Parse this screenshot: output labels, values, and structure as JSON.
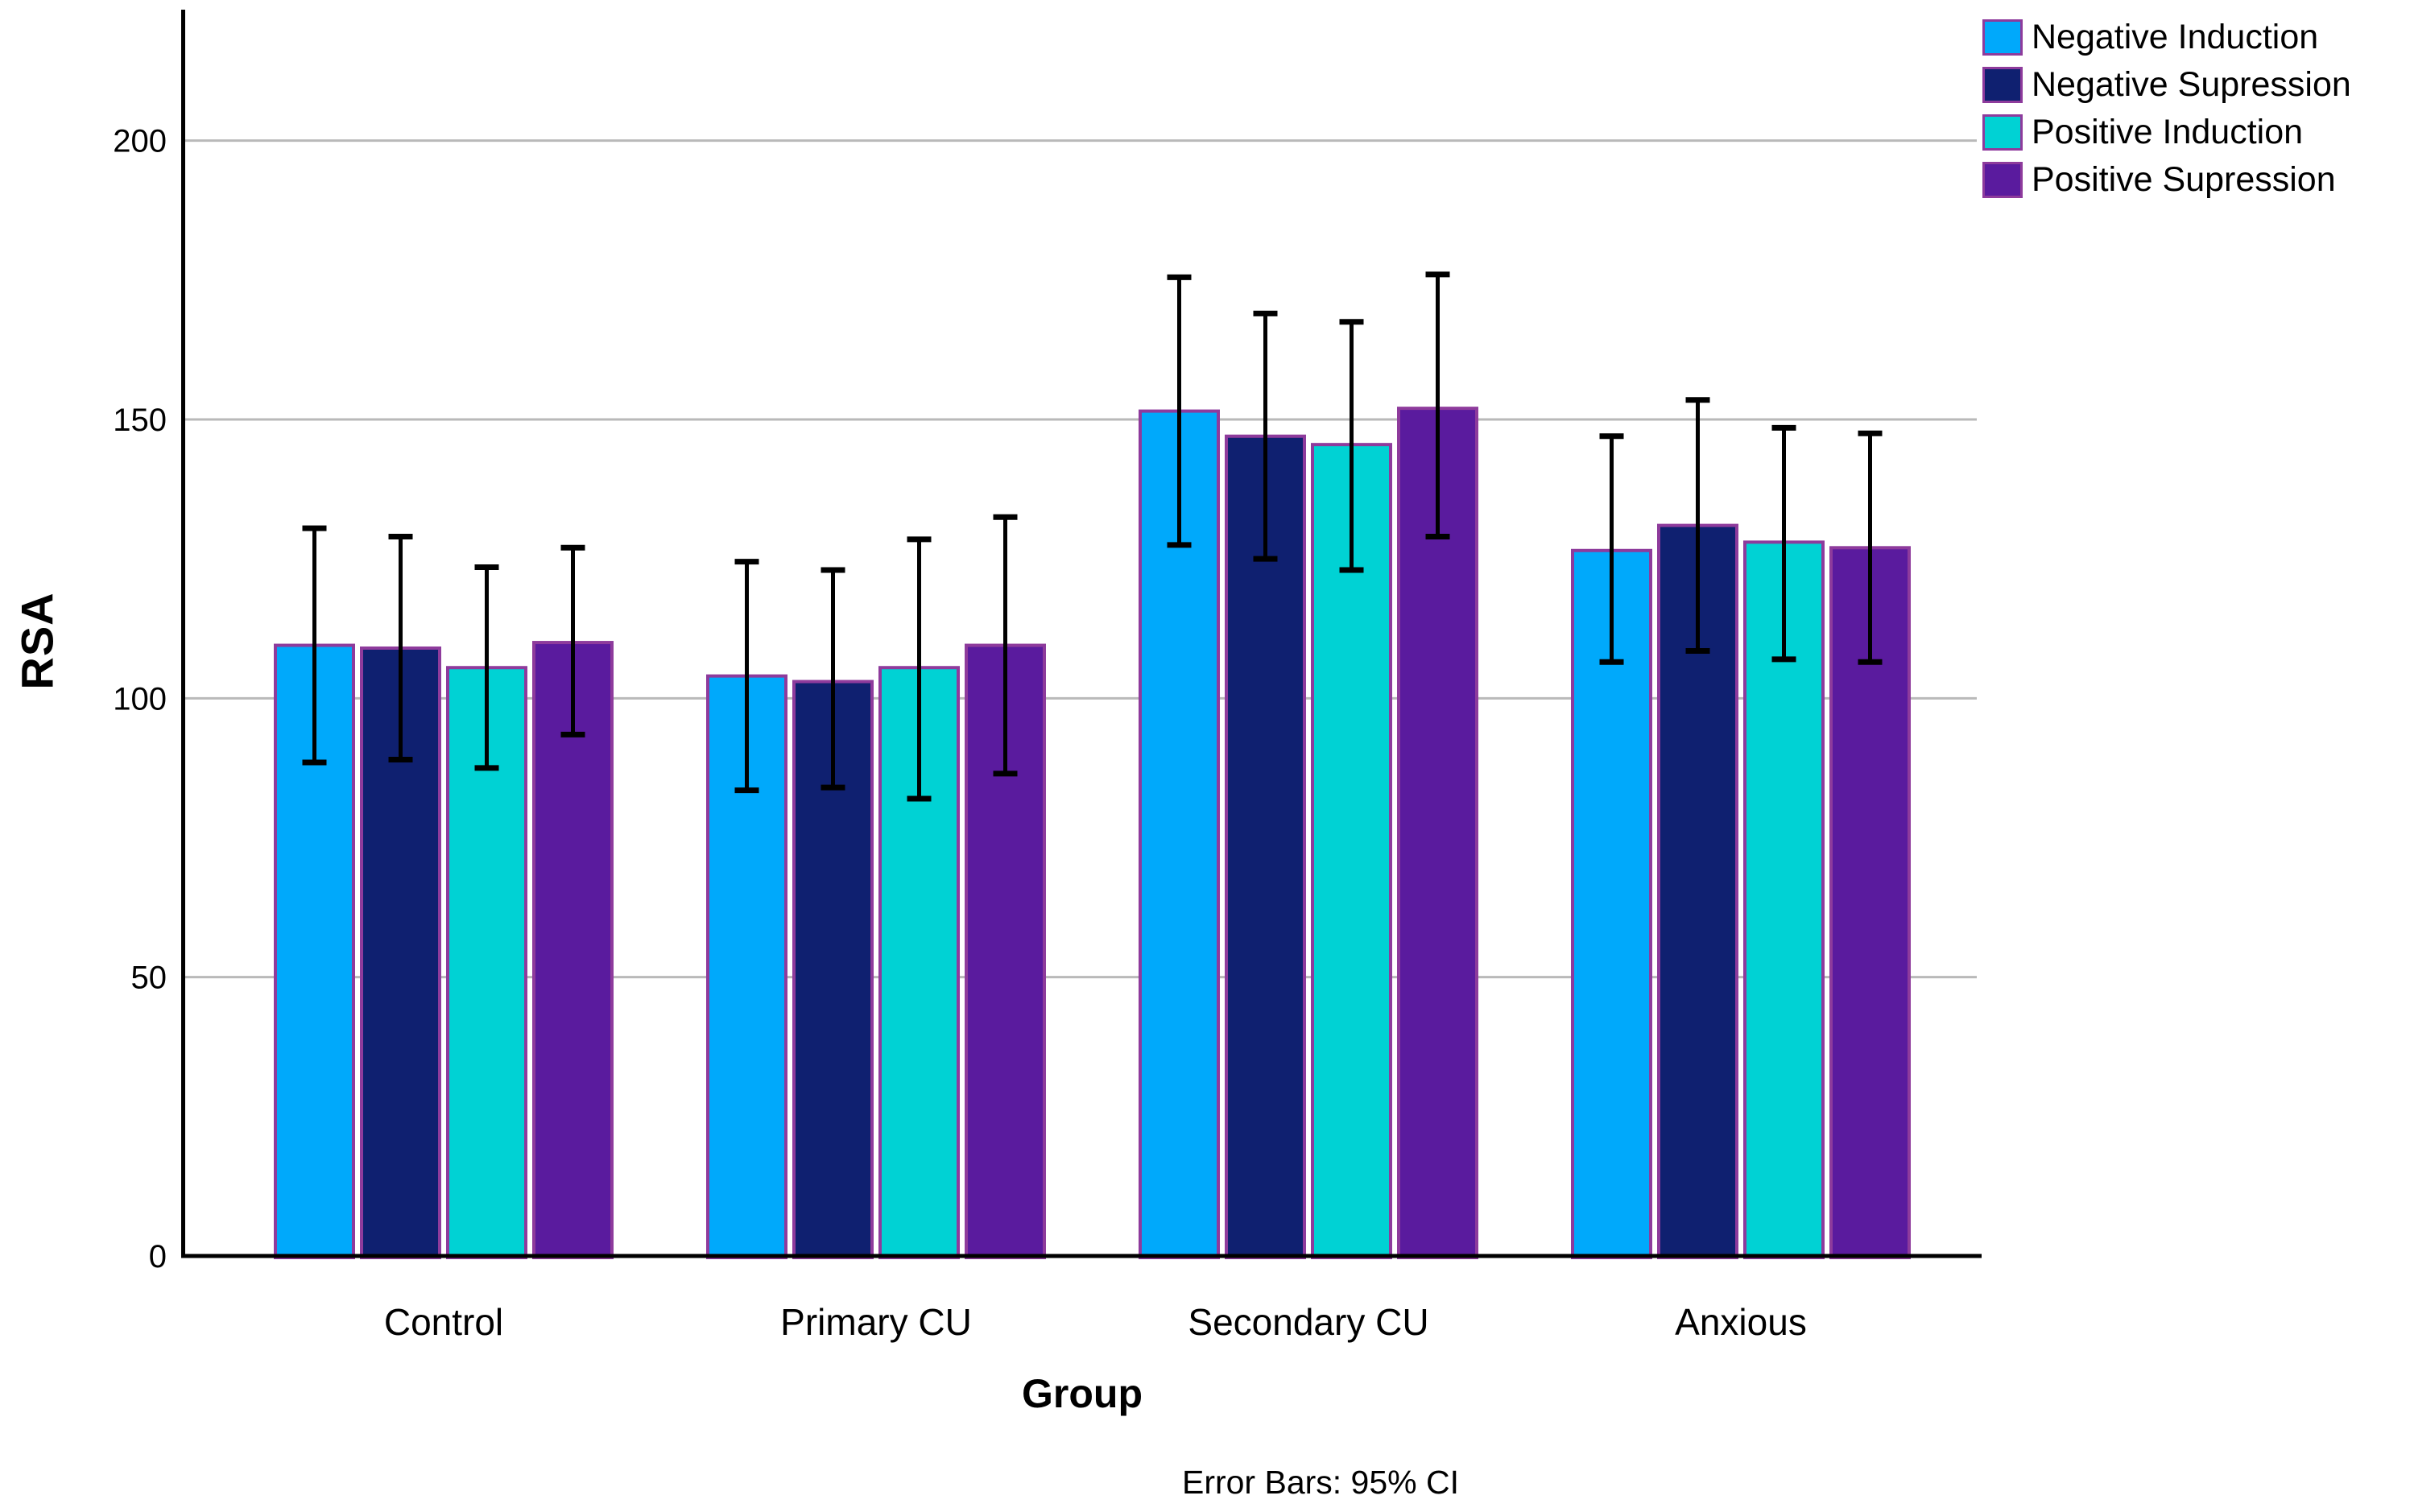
{
  "chart_data": {
    "type": "bar",
    "title": "",
    "xlabel": "Group",
    "ylabel": "RSA",
    "footer": "Error Bars: 95% CI",
    "categories": [
      "Control",
      "Primary CU",
      "Secondary CU",
      "Anxious"
    ],
    "yticks": [
      0,
      50,
      100,
      150,
      200
    ],
    "ylim": [
      0,
      224
    ],
    "grid": true,
    "legend_position": "top-right",
    "colors": {
      "grid_color": "#B9B9B9",
      "axis_color": "#000000",
      "bar_border_color": "#8E3B9C",
      "error_bar_color": "#000000",
      "text_color": "#000000",
      "background": "#FFFFFF"
    },
    "series": [
      {
        "name": "Negative Induction",
        "color": "#00A9FB",
        "values": [
          109.5,
          104,
          151.5,
          126.5
        ],
        "ci_low": [
          88.5,
          83.5,
          127.5,
          106.5
        ],
        "ci_high": [
          130.5,
          124.5,
          175.5,
          147
        ]
      },
      {
        "name": "Negative Supression",
        "color": "#0F2070",
        "values": [
          109,
          103,
          147,
          131
        ],
        "ci_low": [
          89,
          84,
          125,
          108.5
        ],
        "ci_high": [
          129,
          123,
          169,
          153.5
        ]
      },
      {
        "name": "Positive Induction",
        "color": "#00D2D4",
        "values": [
          105.5,
          105.5,
          145.5,
          128
        ],
        "ci_low": [
          87.5,
          82,
          123,
          107
        ],
        "ci_high": [
          123.5,
          128.5,
          167.5,
          148.5
        ]
      },
      {
        "name": "Positive Supression",
        "color": "#5A1B9E",
        "values": [
          110,
          109.5,
          152,
          127
        ],
        "ci_low": [
          93.5,
          86.5,
          129,
          106.5
        ],
        "ci_high": [
          127,
          132.5,
          176,
          147.5
        ]
      }
    ]
  }
}
